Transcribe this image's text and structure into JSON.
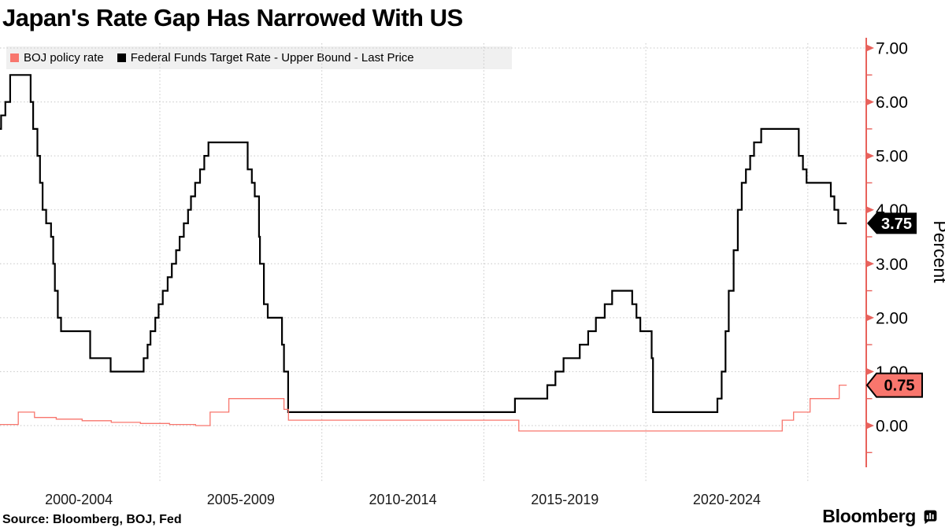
{
  "source": "Source: Bloomberg, BOJ, Fed",
  "branding": "Bloomberg",
  "colors": {
    "boj_red": "#f8766d",
    "fed_black": "#000000",
    "axis_red": "#e8625c",
    "grid_gray": "#c6c6c6",
    "legend_bg": "#f0f0f0"
  },
  "chart_data": {
    "type": "line",
    "title": "Japan's Rate Gap Has Narrowed With US",
    "ylabel": "Percent",
    "grid": "dotted",
    "legend_position": "top-left",
    "ylim": [
      -0.75,
      7.1
    ],
    "x_domain": [
      2000.05,
      2026.2
    ],
    "x_gridline_years": [
      2005,
      2010,
      2015,
      2020,
      2025
    ],
    "x_tick_labels": [
      {
        "label": "2000-2004",
        "center_year": 2002.5
      },
      {
        "label": "2005-2009",
        "center_year": 2007.5
      },
      {
        "label": "2010-2014",
        "center_year": 2012.5
      },
      {
        "label": "2015-2019",
        "center_year": 2017.5
      },
      {
        "label": "2020-2024",
        "center_year": 2022.5
      }
    ],
    "y_ticks": [
      {
        "value": 0,
        "label": "0.00"
      },
      {
        "value": 1,
        "label": "1.00"
      },
      {
        "value": 2,
        "label": "2.00"
      },
      {
        "value": 3,
        "label": "3.00"
      },
      {
        "value": 4,
        "label": "4.00"
      },
      {
        "value": 5,
        "label": "5.00"
      },
      {
        "value": 6,
        "label": "6.00"
      },
      {
        "value": 7,
        "label": "7.00"
      }
    ],
    "y_minor_tick_values": [
      -0.5,
      0.5,
      1.5,
      2.5,
      3.5,
      4.5,
      5.5,
      6.5
    ],
    "series": [
      {
        "id": "fed",
        "name": "Federal Funds Target Rate - Upper Bound - Last Price",
        "color": "#000000",
        "line_width": 2.2,
        "last_price": "3.75",
        "badge": {
          "bg": "#000000",
          "text_color": "#ffffff",
          "border": "none"
        },
        "points": [
          [
            2000.05,
            5.5
          ],
          [
            2000.1,
            5.75
          ],
          [
            2000.23,
            6.0
          ],
          [
            2000.38,
            6.5
          ],
          [
            2001.01,
            6.0
          ],
          [
            2001.09,
            5.5
          ],
          [
            2001.22,
            5.0
          ],
          [
            2001.3,
            4.5
          ],
          [
            2001.38,
            4.0
          ],
          [
            2001.49,
            3.75
          ],
          [
            2001.64,
            3.5
          ],
          [
            2001.71,
            3.0
          ],
          [
            2001.76,
            2.5
          ],
          [
            2001.85,
            2.0
          ],
          [
            2001.95,
            1.75
          ],
          [
            2002.85,
            1.25
          ],
          [
            2003.48,
            1.0
          ],
          [
            2004.5,
            1.25
          ],
          [
            2004.62,
            1.5
          ],
          [
            2004.71,
            1.75
          ],
          [
            2004.86,
            2.0
          ],
          [
            2004.96,
            2.25
          ],
          [
            2005.09,
            2.5
          ],
          [
            2005.24,
            2.75
          ],
          [
            2005.37,
            3.0
          ],
          [
            2005.5,
            3.25
          ],
          [
            2005.61,
            3.5
          ],
          [
            2005.74,
            3.75
          ],
          [
            2005.87,
            4.0
          ],
          [
            2005.96,
            4.25
          ],
          [
            2006.09,
            4.5
          ],
          [
            2006.24,
            4.75
          ],
          [
            2006.37,
            5.0
          ],
          [
            2006.5,
            5.25
          ],
          [
            2007.71,
            4.75
          ],
          [
            2007.84,
            4.5
          ],
          [
            2007.93,
            4.25
          ],
          [
            2008.06,
            3.5
          ],
          [
            2008.09,
            3.0
          ],
          [
            2008.21,
            2.25
          ],
          [
            2008.33,
            2.0
          ],
          [
            2008.77,
            1.5
          ],
          [
            2008.83,
            1.0
          ],
          [
            2008.96,
            0.25
          ],
          [
            2015.96,
            0.5
          ],
          [
            2016.96,
            0.75
          ],
          [
            2017.21,
            1.0
          ],
          [
            2017.46,
            1.25
          ],
          [
            2017.96,
            1.5
          ],
          [
            2018.22,
            1.75
          ],
          [
            2018.46,
            2.0
          ],
          [
            2018.73,
            2.25
          ],
          [
            2018.96,
            2.5
          ],
          [
            2019.58,
            2.25
          ],
          [
            2019.71,
            2.0
          ],
          [
            2019.83,
            1.75
          ],
          [
            2020.18,
            1.25
          ],
          [
            2020.22,
            0.25
          ],
          [
            2022.21,
            0.5
          ],
          [
            2022.34,
            1.0
          ],
          [
            2022.46,
            1.75
          ],
          [
            2022.56,
            2.5
          ],
          [
            2022.71,
            3.25
          ],
          [
            2022.84,
            4.0
          ],
          [
            2022.96,
            4.5
          ],
          [
            2023.09,
            4.75
          ],
          [
            2023.22,
            5.0
          ],
          [
            2023.34,
            5.25
          ],
          [
            2023.56,
            5.5
          ],
          [
            2024.72,
            5.0
          ],
          [
            2024.85,
            4.75
          ],
          [
            2024.96,
            4.5
          ],
          [
            2025.71,
            4.25
          ],
          [
            2025.82,
            4.0
          ],
          [
            2025.94,
            3.75
          ],
          [
            2026.2,
            3.75
          ]
        ]
      },
      {
        "id": "boj",
        "name": "BOJ policy rate",
        "color": "#f8766d",
        "line_width": 1.3,
        "last_price": "0.75",
        "badge": {
          "bg": "#f8766d",
          "text_color": "#000000",
          "border": "#000000"
        },
        "points": [
          [
            2000.05,
            0.02
          ],
          [
            2000.63,
            0.25
          ],
          [
            2001.13,
            0.15
          ],
          [
            2001.8,
            0.12
          ],
          [
            2002.6,
            0.09
          ],
          [
            2003.5,
            0.06
          ],
          [
            2004.4,
            0.04
          ],
          [
            2005.3,
            0.02
          ],
          [
            2006.1,
            0.0
          ],
          [
            2006.55,
            0.25
          ],
          [
            2007.13,
            0.5
          ],
          [
            2008.83,
            0.3
          ],
          [
            2008.97,
            0.1
          ],
          [
            2016.08,
            -0.1
          ],
          [
            2024.21,
            0.1
          ],
          [
            2024.56,
            0.25
          ],
          [
            2025.07,
            0.5
          ],
          [
            2025.97,
            0.75
          ],
          [
            2026.2,
            0.75
          ]
        ]
      }
    ]
  }
}
